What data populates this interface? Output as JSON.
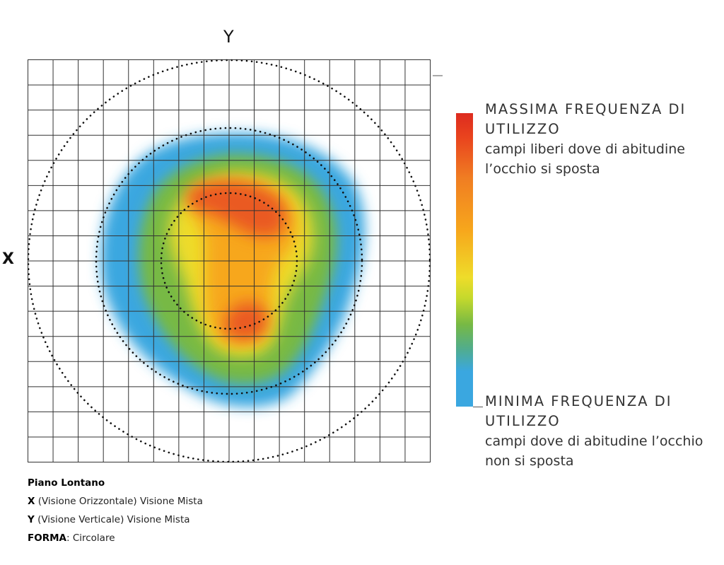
{
  "axes": {
    "y_label": "Y",
    "x_label": "X"
  },
  "legend": {
    "max_title": "MASSIMA FREQUENZA DI UTILIZZO",
    "max_title_line1": "MASSIMA FREQUENZA DI",
    "max_title_line2": "UTILIZZO",
    "max_desc_line1": "campi liberi dove di abitudine",
    "max_desc_line2": "l’occhio si sposta",
    "min_title_line1": "MINIMA FREQUENZA DI",
    "min_title_line2": "UTILIZZO",
    "min_desc_line1": "campi dove di abitudine l’occhio",
    "min_desc_line2": "non si sposta",
    "colors": {
      "max": "#dd2b1f",
      "high": "#f07d22",
      "mid_high": "#f7a71c",
      "mid": "#eedc2a",
      "low": "#77b944",
      "min": "#3aa7e0"
    }
  },
  "caption": {
    "title": "Piano Lontano",
    "x_key": "X",
    "x_text": " (Visione Orizzontale) Visione Mista",
    "y_key": "Y",
    "y_text": " (Visione Verticale) Visione Mista",
    "form_key": "FORMA",
    "form_text": ": Circolare"
  },
  "grid": {
    "columns": 16,
    "rows": 16
  }
}
